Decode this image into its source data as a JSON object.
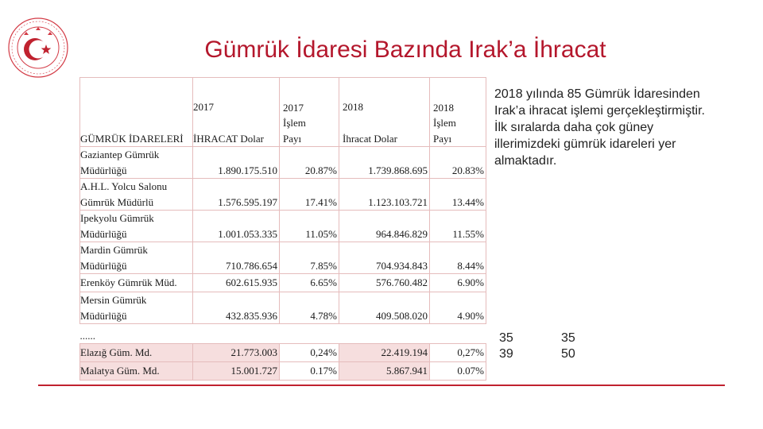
{
  "page": {
    "title": "Gümrük İdaresi Bazında Irak’a İhracat",
    "accent": "#b4172c"
  },
  "logo": {
    "icon": "crescent-star-seal-icon",
    "color": "#c0222f"
  },
  "table": {
    "headers": {
      "customs": "GÜMRÜK İDARELERİ",
      "exp2017_year": "2017",
      "exp2017_label": "İHRACAT Dolar",
      "share2017_year": "2017",
      "share2017_l1": "İşlem",
      "share2017_l2": "Payı",
      "exp2018_year": "2018",
      "exp2018_label": "İhracat Dolar",
      "share2018_year": "2018",
      "share2018_l1": "İşlem",
      "share2018_l2": "Payı"
    },
    "rows": [
      {
        "l1": "Gaziantep Gümrük",
        "l2": "Müdürlüğü",
        "exp2017": "1.890.175.510",
        "share2017": "20.87%",
        "exp2018": "1.739.868.695",
        "share2018": "20.83%"
      },
      {
        "l1": "A.H.L. Yolcu Salonu",
        "l2": "Gümrük Müdürlü",
        "exp2017": "1.576.595.197",
        "share2017": "17.41%",
        "exp2018": "1.123.103.721",
        "share2018": "13.44%"
      },
      {
        "l1": "Ipekyolu Gümrük",
        "l2": "Müdürlüğü",
        "exp2017": "1.001.053.335",
        "share2017": "11.05%",
        "exp2018": "964.846.829",
        "share2018": "11.55%"
      },
      {
        "l1": "Mardin Gümrük",
        "l2": "Müdürlüğü",
        "exp2017": "710.786.654",
        "share2017": "7.85%",
        "exp2018": "704.934.843",
        "share2018": "8.44%"
      },
      {
        "l1": "Erenköy Gümrük Müd.",
        "l2": "",
        "exp2017": "602.615.935",
        "share2017": "6.65%",
        "exp2018": "576.760.482",
        "share2018": "6.90%"
      },
      {
        "l1": "Mersin Gümrük",
        "l2": "Müdürlüğü",
        "exp2017": "432.835.936",
        "share2017": "4.78%",
        "exp2018": "409.508.020",
        "share2018": "4.90%"
      }
    ],
    "ellipsis": "......",
    "footer_rows": [
      {
        "name": "Elazığ Güm. Md.",
        "exp2017": "21.773.003",
        "share2017": "0,24%",
        "exp2018": "22.419.194",
        "share2018": "0,27%"
      },
      {
        "name": "Malatya Güm. Md.",
        "exp2017": "15.001.727",
        "share2017": "0.17%",
        "exp2018": "5.867.941",
        "share2018": "0.07%"
      }
    ]
  },
  "note": "2018 yılında 85 Gümrük İdaresinden Irak’a ihracat işlemi gerçekleştirmiştir. İlk sıralarda daha çok güney illerimizdeki gümrük idareleri yer almaktadır.",
  "ranks": {
    "col_a": [
      "35",
      "39"
    ],
    "col_b": [
      "35",
      "50"
    ]
  }
}
